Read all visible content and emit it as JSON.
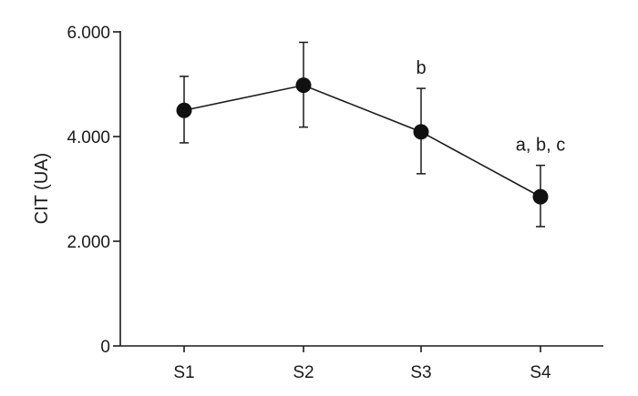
{
  "chart_data": {
    "type": "line",
    "title": "",
    "xlabel": "",
    "ylabel": "CIT (UA)",
    "categories": [
      "S1",
      "S2",
      "S3",
      "S4"
    ],
    "series": [
      {
        "values": [
          4500,
          4980,
          4090,
          2850
        ],
        "error_low": [
          3880,
          4180,
          3290,
          2280
        ],
        "error_high": [
          5150,
          5800,
          4920,
          3450
        ]
      }
    ],
    "annotations": [
      {
        "category": "S3",
        "text": "b"
      },
      {
        "category": "S4",
        "text": "a, b, c"
      }
    ],
    "ylim": [
      0,
      6000
    ],
    "yticks": [
      0,
      2000,
      4000,
      6000
    ],
    "ytick_labels": [
      "0",
      "2.000",
      "4.000",
      "6.000"
    ],
    "grid": false,
    "legend": "none"
  }
}
